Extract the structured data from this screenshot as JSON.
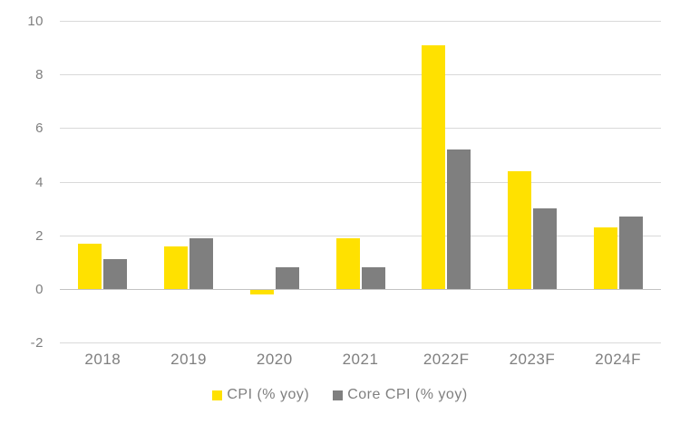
{
  "chart_data": {
    "type": "bar",
    "title": "",
    "xlabel": "",
    "ylabel": "",
    "categories": [
      "2018",
      "2019",
      "2020",
      "2021",
      "2022F",
      "2023F",
      "2024F"
    ],
    "series": [
      {
        "name": "CPI (% yoy)",
        "color": "#ffe100",
        "values": [
          1.7,
          1.6,
          -0.2,
          1.9,
          9.1,
          4.4,
          2.3
        ]
      },
      {
        "name": "Core CPI (% yoy)",
        "color": "#7f7f7f",
        "values": [
          1.1,
          1.9,
          0.8,
          0.8,
          5.2,
          3.0,
          2.7
        ]
      }
    ],
    "ylim": [
      -2,
      10
    ],
    "yticks": [
      10,
      8,
      6,
      4,
      2,
      0,
      -2
    ],
    "grid": "horizontal",
    "legend_position": "bottom"
  },
  "colors": {
    "background": "#ffffff",
    "gridline": "#d9d9d9",
    "zero_line": "#c2c2c2",
    "tick_text": "#7f7f7f",
    "cpi_bar": "#ffe100",
    "core_cpi_bar": "#7f7f7f"
  }
}
